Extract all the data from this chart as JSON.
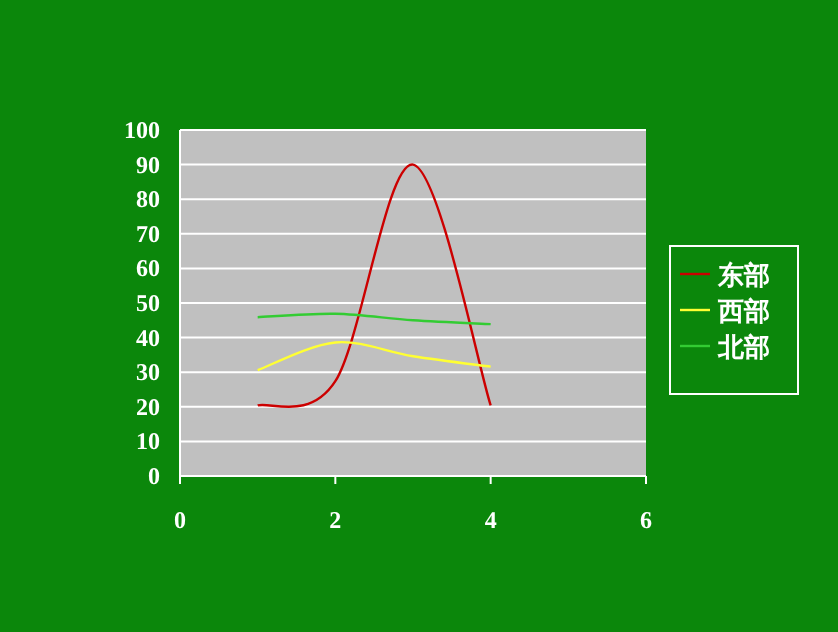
{
  "chart_data": {
    "type": "line",
    "x": [
      1,
      2,
      3,
      4
    ],
    "xlim": [
      0,
      6
    ],
    "xticks": [
      0,
      2,
      4,
      6
    ],
    "ylim": [
      0,
      100
    ],
    "yticks": [
      0,
      10,
      20,
      30,
      40,
      50,
      60,
      70,
      80,
      90,
      100
    ],
    "grid": "y",
    "legend": "right",
    "marker": "none",
    "line_style": "solid",
    "series": [
      {
        "name": "东部",
        "color": "#cc0000",
        "values": [
          20.4,
          27.4,
          90,
          20.4
        ]
      },
      {
        "name": "西部",
        "color": "#ffff33",
        "values": [
          30.6,
          38.6,
          34.6,
          31.6
        ]
      },
      {
        "name": "北部",
        "color": "#33cc33",
        "values": [
          45.9,
          46.9,
          45,
          43.9
        ]
      }
    ]
  }
}
